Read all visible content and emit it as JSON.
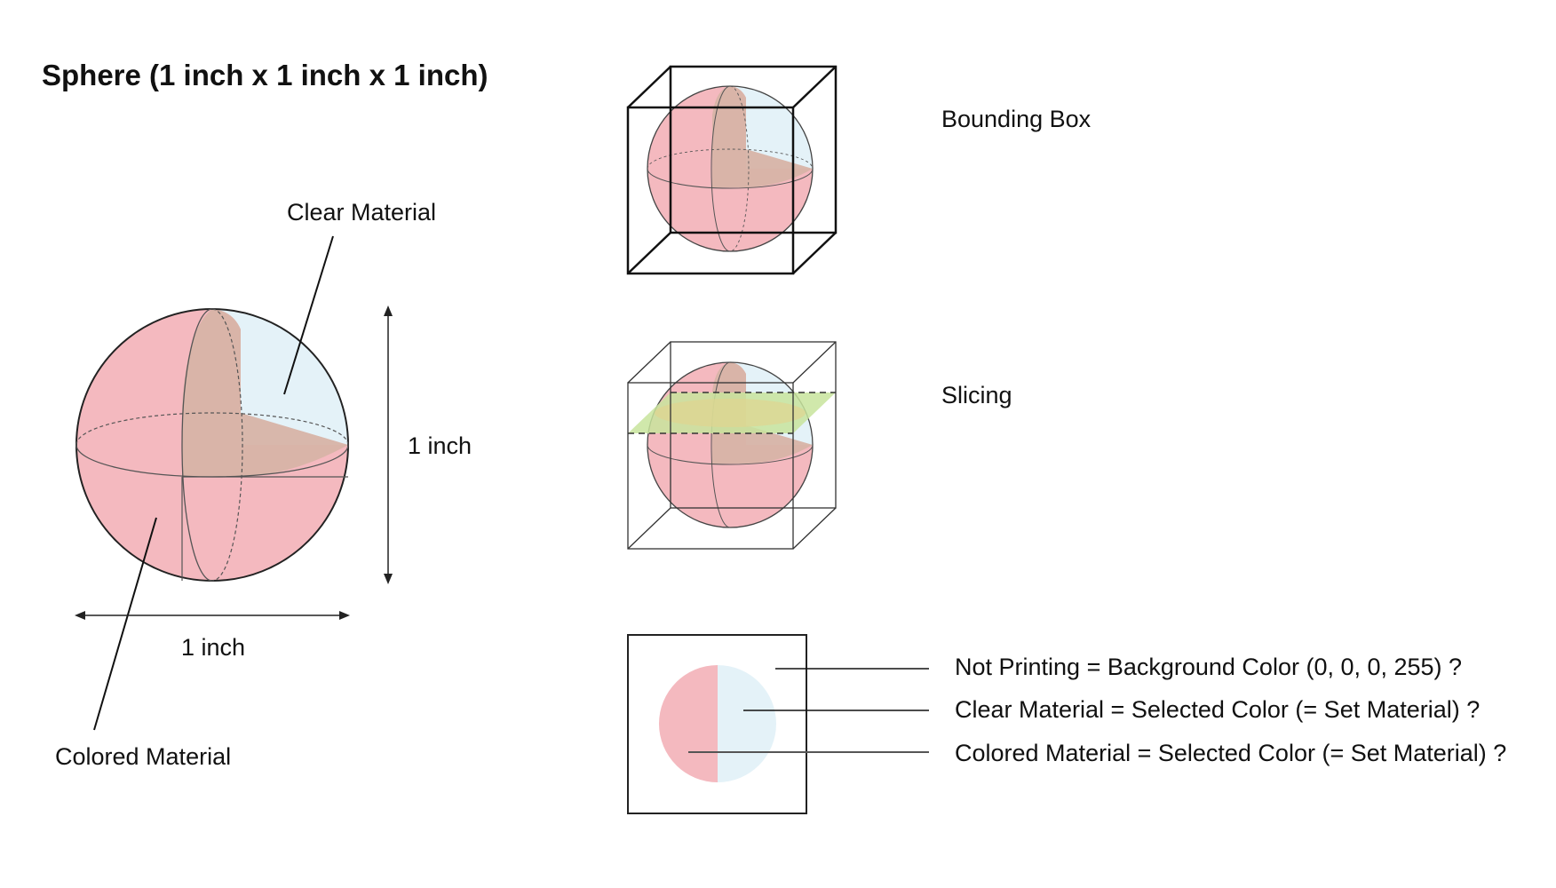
{
  "title": "Sphere (1 inch x 1 inch x 1 inch)",
  "labels": {
    "clear_material": "Clear Material",
    "colored_material": "Colored Material",
    "height_dim": "1 inch",
    "width_dim": "1 inch",
    "bounding_box": "Bounding Box",
    "slicing": "Slicing"
  },
  "legend": {
    "not_printing": "Not Printing = Background Color (0, 0, 0, 255) ?",
    "clear": "Clear Material = Selected Color (= Set Material) ?",
    "colored": "Colored Material = Selected Color (= Set Material) ?"
  },
  "colors": {
    "colored_material": "#f4b9bf",
    "clear_material": "#e4f2f8",
    "interior_plane": "#d7b3a6",
    "slice_plane": "#c8e49c",
    "outline": "#222222"
  }
}
